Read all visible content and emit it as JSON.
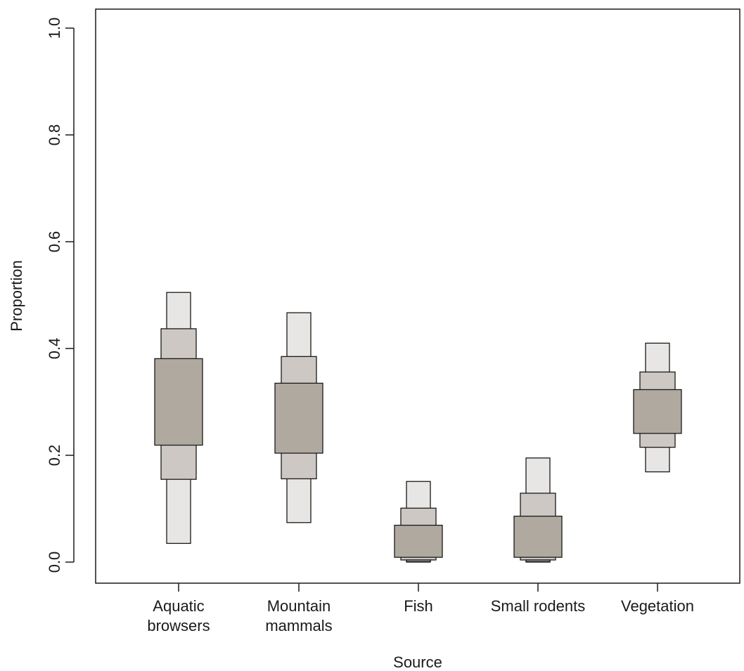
{
  "chart_data": {
    "type": "boxplot",
    "xlabel": "Source",
    "ylabel": "Proportion",
    "ylim": [
      0.0,
      1.0
    ],
    "yticks": [
      "0.0",
      "0.2",
      "0.4",
      "0.6",
      "0.8",
      "1.0"
    ],
    "ytick_values": [
      0.0,
      0.2,
      0.4,
      0.6,
      0.8,
      1.0
    ],
    "grid": false,
    "colors": {
      "interval_50": "#b0a9a0",
      "interval_75": "#cdc8c3",
      "interval_95": "#e8e6e4",
      "outline": "#1a1a1a"
    },
    "categories": [
      {
        "label": [
          "Aquatic",
          "browsers"
        ],
        "ci95": [
          0.035,
          0.505
        ],
        "ci75": [
          0.155,
          0.437
        ],
        "ci50": [
          0.219,
          0.381
        ],
        "ci_tail": null
      },
      {
        "label": [
          "Mountain",
          "mammals"
        ],
        "ci95": [
          0.074,
          0.467
        ],
        "ci75": [
          0.156,
          0.385
        ],
        "ci50": [
          0.204,
          0.335
        ],
        "ci_tail": null
      },
      {
        "label": [
          "Fish"
        ],
        "ci95": [
          0.0,
          0.151
        ],
        "ci75": [
          0.004,
          0.101
        ],
        "ci50": [
          0.009,
          0.069
        ],
        "ci_tail": [
          0.001,
          0.004
        ]
      },
      {
        "label": [
          "Small rodents"
        ],
        "ci95": [
          0.0,
          0.195
        ],
        "ci75": [
          0.004,
          0.129
        ],
        "ci50": [
          0.009,
          0.086
        ],
        "ci_tail": [
          0.001,
          0.004
        ]
      },
      {
        "label": [
          "Vegetation"
        ],
        "ci95": [
          0.169,
          0.41
        ],
        "ci75": [
          0.215,
          0.356
        ],
        "ci50": [
          0.241,
          0.323
        ],
        "ci_tail": null
      }
    ]
  }
}
